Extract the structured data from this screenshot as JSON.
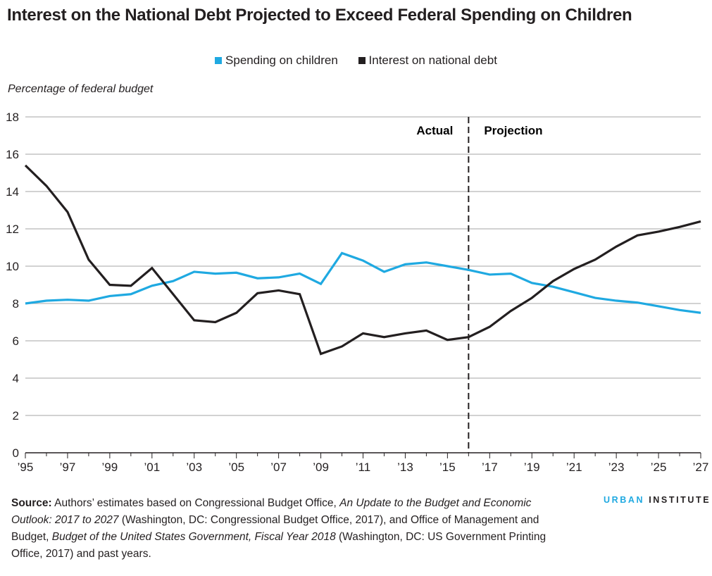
{
  "title": "Interest on the National Debt Projected to Exceed Federal Spending on Children",
  "colors": {
    "children": "#1fa9e1",
    "interest": "#231f20",
    "grid": "#b8b8b8"
  },
  "chart_data": {
    "type": "line",
    "title": "Interest on the National Debt Projected to Exceed Federal Spending on Children",
    "ylabel": "Percentage of federal budget",
    "xlabel": "",
    "ylim": [
      0,
      18
    ],
    "xlim": [
      1995,
      2027
    ],
    "yticks": [
      "0",
      "2",
      "4",
      "6",
      "8",
      "10",
      "12",
      "14",
      "16",
      "18"
    ],
    "xticks": [
      "’95",
      "’97",
      "’99",
      "’01",
      "’03",
      "’05",
      "’07",
      "’09",
      "’11",
      "’13",
      "’15",
      "’17",
      "’19",
      "’21",
      "’23",
      "’25",
      "’27"
    ],
    "grid": true,
    "legend": "top-center",
    "annotations": {
      "divider_year": 2016,
      "left": "Actual",
      "right": "Projection"
    },
    "x": [
      1995,
      1996,
      1997,
      1998,
      1999,
      2000,
      2001,
      2002,
      2003,
      2004,
      2005,
      2006,
      2007,
      2008,
      2009,
      2010,
      2011,
      2012,
      2013,
      2014,
      2015,
      2016,
      2017,
      2018,
      2019,
      2020,
      2021,
      2022,
      2023,
      2024,
      2025,
      2026,
      2027
    ],
    "series": [
      {
        "name": "Spending on children",
        "values": [
          8.0,
          8.15,
          8.2,
          8.15,
          8.4,
          8.5,
          8.95,
          9.2,
          9.7,
          9.6,
          9.65,
          9.35,
          9.4,
          9.6,
          9.05,
          10.7,
          10.3,
          9.7,
          10.1,
          10.2,
          10.0,
          9.8,
          9.55,
          9.6,
          9.1,
          8.9,
          8.6,
          8.3,
          8.15,
          8.05,
          7.85,
          7.65,
          7.5
        ]
      },
      {
        "name": "Interest on national debt",
        "values": [
          15.4,
          14.3,
          12.9,
          10.35,
          9.0,
          8.95,
          9.9,
          8.5,
          7.1,
          7.0,
          7.5,
          8.55,
          8.7,
          8.5,
          5.3,
          5.7,
          6.4,
          6.2,
          6.4,
          6.55,
          6.05,
          6.2,
          6.75,
          7.6,
          8.3,
          9.2,
          9.85,
          10.35,
          11.05,
          11.65,
          11.85,
          12.1,
          12.4
        ]
      }
    ]
  },
  "source": {
    "label": "Source:",
    "text1": " Authors’ estimates based on Congressional Budget Office, ",
    "italic1": "An Update to the Budget and Economic Outlook: 2017 to 2027",
    "text2": " (Washington, DC: Congressional Budget Office, 2017), and Office of Management and Budget, ",
    "italic2": "Budget of the United States Government, Fiscal Year 2018",
    "text3": " (Washington, DC: US Government Printing Office, 2017) and past years."
  },
  "logo": {
    "part1": "URBAN",
    "part2": "INSTITUTE"
  }
}
